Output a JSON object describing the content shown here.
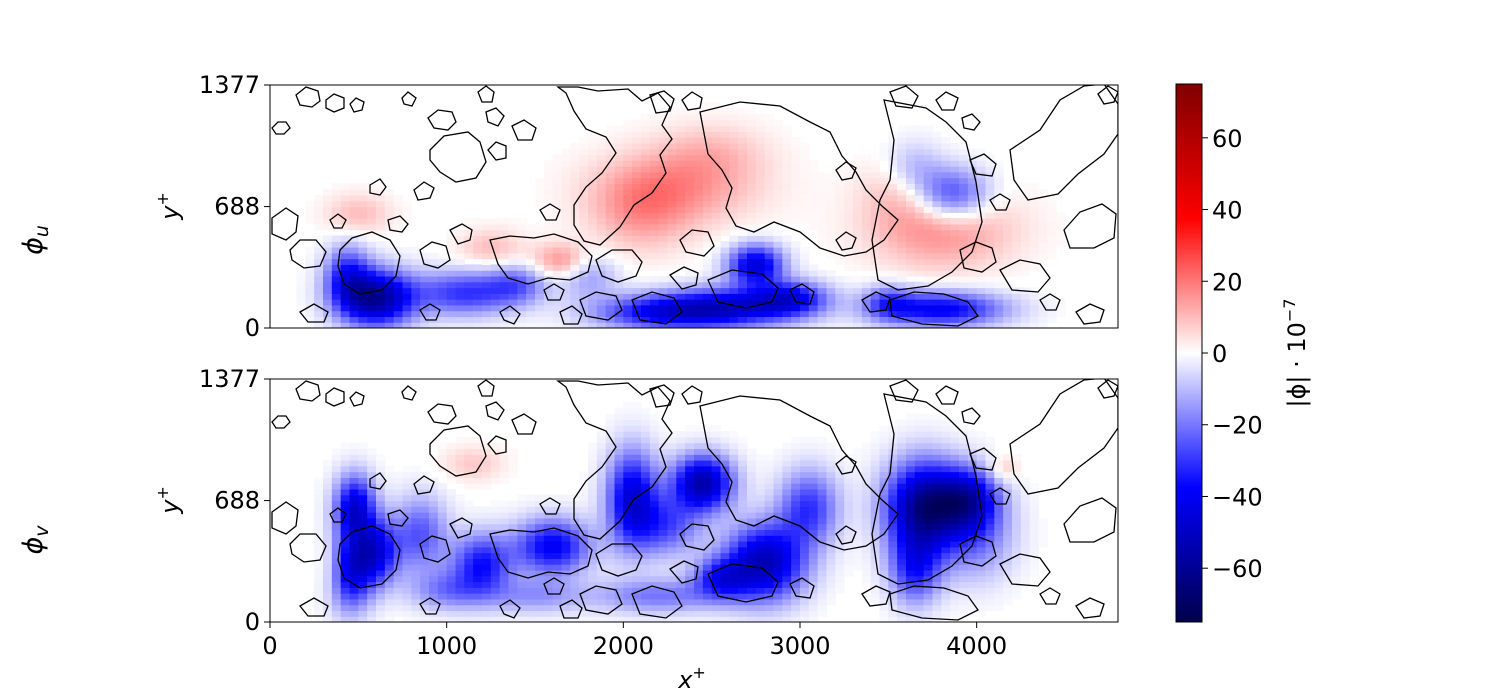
{
  "chart_data": [
    {
      "type": "heatmap",
      "row_label": "ϕ",
      "row_label_sub": "u",
      "ylabel": "y",
      "ylabel_sup": "+",
      "xlim": [
        0,
        4800
      ],
      "ylim": [
        0,
        1377
      ],
      "yticks": [
        0,
        688,
        1377
      ],
      "xticks": [],
      "blobs": [
        {
          "x": 600,
          "y": 170,
          "value": -58,
          "sx": 150,
          "sy": 110
        },
        {
          "x": 440,
          "y": 300,
          "value": -30,
          "sx": 90,
          "sy": 120
        },
        {
          "x": 1100,
          "y": 200,
          "value": -30,
          "sx": 200,
          "sy": 90
        },
        {
          "x": 1400,
          "y": 250,
          "value": -20,
          "sx": 120,
          "sy": 80
        },
        {
          "x": 1800,
          "y": 300,
          "value": -15,
          "sx": 120,
          "sy": 90
        },
        {
          "x": 2600,
          "y": 120,
          "value": -40,
          "sx": 260,
          "sy": 80
        },
        {
          "x": 2200,
          "y": 90,
          "value": -35,
          "sx": 260,
          "sy": 70
        },
        {
          "x": 2750,
          "y": 360,
          "value": -45,
          "sx": 110,
          "sy": 80
        },
        {
          "x": 2950,
          "y": 170,
          "value": -35,
          "sx": 150,
          "sy": 70
        },
        {
          "x": 3800,
          "y": 110,
          "value": -40,
          "sx": 250,
          "sy": 70
        },
        {
          "x": 3850,
          "y": 760,
          "value": -35,
          "sx": 150,
          "sy": 110
        },
        {
          "x": 3650,
          "y": 900,
          "value": -15,
          "sx": 120,
          "sy": 110
        },
        {
          "x": 3500,
          "y": 150,
          "value": -20,
          "sx": 100,
          "sy": 70
        },
        {
          "x": 2300,
          "y": 800,
          "value": 15,
          "sx": 320,
          "sy": 150
        },
        {
          "x": 2100,
          "y": 650,
          "value": 12,
          "sx": 200,
          "sy": 160
        },
        {
          "x": 2500,
          "y": 1000,
          "value": 8,
          "sx": 220,
          "sy": 120
        },
        {
          "x": 3800,
          "y": 570,
          "value": 18,
          "sx": 280,
          "sy": 160
        },
        {
          "x": 3650,
          "y": 800,
          "value": 12,
          "sx": 180,
          "sy": 130
        },
        {
          "x": 1650,
          "y": 380,
          "value": 18,
          "sx": 110,
          "sy": 70
        },
        {
          "x": 500,
          "y": 650,
          "value": 10,
          "sx": 130,
          "sy": 80
        },
        {
          "x": 1250,
          "y": 450,
          "value": 10,
          "sx": 130,
          "sy": 80
        }
      ]
    },
    {
      "type": "heatmap",
      "row_label": "ϕ",
      "row_label_sub": "v",
      "ylabel": "y",
      "ylabel_sup": "+",
      "xlabel": "x",
      "xlabel_sup": "+",
      "xlim": [
        0,
        4800
      ],
      "ylim": [
        0,
        1377
      ],
      "yticks": [
        0,
        688,
        1377
      ],
      "xticks": [
        0,
        1000,
        2000,
        3000,
        4000
      ],
      "blobs": [
        {
          "x": 480,
          "y": 650,
          "value": -45,
          "sx": 80,
          "sy": 130
        },
        {
          "x": 450,
          "y": 280,
          "value": -40,
          "sx": 90,
          "sy": 150
        },
        {
          "x": 600,
          "y": 400,
          "value": -40,
          "sx": 90,
          "sy": 130
        },
        {
          "x": 850,
          "y": 500,
          "value": -25,
          "sx": 110,
          "sy": 150
        },
        {
          "x": 1200,
          "y": 330,
          "value": -35,
          "sx": 120,
          "sy": 120
        },
        {
          "x": 1600,
          "y": 430,
          "value": -40,
          "sx": 150,
          "sy": 110
        },
        {
          "x": 2450,
          "y": 790,
          "value": -55,
          "sx": 120,
          "sy": 110
        },
        {
          "x": 2050,
          "y": 700,
          "value": -45,
          "sx": 100,
          "sy": 190
        },
        {
          "x": 2250,
          "y": 550,
          "value": -25,
          "sx": 130,
          "sy": 120
        },
        {
          "x": 2800,
          "y": 340,
          "value": -52,
          "sx": 160,
          "sy": 150
        },
        {
          "x": 3050,
          "y": 650,
          "value": -30,
          "sx": 120,
          "sy": 150
        },
        {
          "x": 2550,
          "y": 250,
          "value": -30,
          "sx": 110,
          "sy": 80
        },
        {
          "x": 3700,
          "y": 650,
          "value": -62,
          "sx": 150,
          "sy": 180
        },
        {
          "x": 3950,
          "y": 700,
          "value": -40,
          "sx": 120,
          "sy": 120
        },
        {
          "x": 3650,
          "y": 300,
          "value": -30,
          "sx": 100,
          "sy": 140
        },
        {
          "x": 4000,
          "y": 500,
          "value": -20,
          "sx": 150,
          "sy": 180
        },
        {
          "x": 2200,
          "y": 150,
          "value": -20,
          "sx": 250,
          "sy": 70
        },
        {
          "x": 1500,
          "y": 150,
          "value": -15,
          "sx": 200,
          "sy": 70
        },
        {
          "x": 1000,
          "y": 180,
          "value": -18,
          "sx": 150,
          "sy": 80
        },
        {
          "x": 350,
          "y": 300,
          "value": 10,
          "sx": 60,
          "sy": 120
        },
        {
          "x": 1150,
          "y": 900,
          "value": 8,
          "sx": 120,
          "sy": 70
        },
        {
          "x": 4150,
          "y": 870,
          "value": 10,
          "sx": 60,
          "sy": 50
        }
      ]
    }
  ],
  "colorbar": {
    "label": "|ϕ| · 10",
    "label_exp": "−7",
    "vmin": -75,
    "vmax": 75,
    "ticks": [
      {
        "value": 60,
        "label": "60"
      },
      {
        "value": 40,
        "label": "40"
      },
      {
        "value": 20,
        "label": "20"
      },
      {
        "value": 0,
        "label": "0"
      },
      {
        "value": -20,
        "label": "−20"
      },
      {
        "value": -40,
        "label": "−40"
      },
      {
        "value": -60,
        "label": "−60"
      }
    ],
    "colormap": "seismic",
    "colors": [
      "#00004c",
      "#0000ff",
      "#ffffff",
      "#ff0000",
      "#7f0000"
    ]
  },
  "contour_color": "#000000"
}
